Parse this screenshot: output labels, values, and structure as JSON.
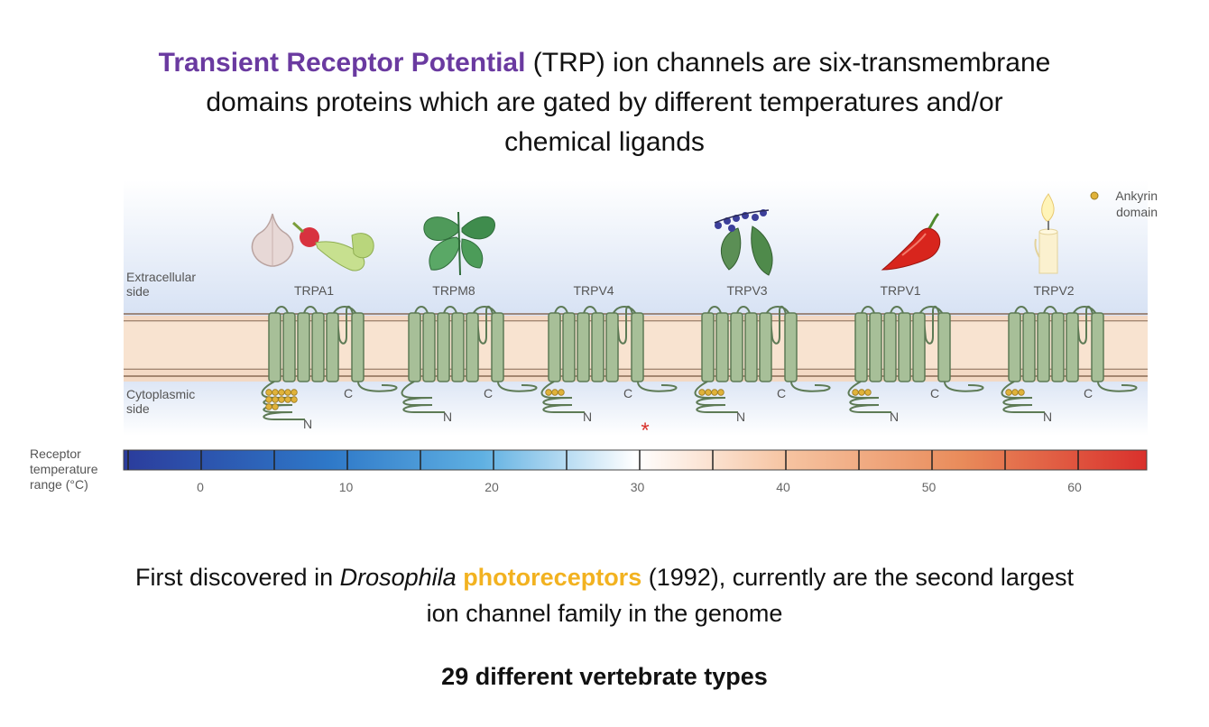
{
  "title": {
    "highlight": "Transient Receptor Potential",
    "rest_line1": " (TRP) ion channels are six-transmembrane",
    "line2": "domains proteins which are gated by different temperatures and/or",
    "line3": "chemical ligands"
  },
  "diagram": {
    "extracellular_label_1": "Extracellular",
    "extracellular_label_2": "side",
    "cytoplasmic_label_1": "Cytoplasmic",
    "cytoplasmic_label_2": "side",
    "ankyrin_label_1": "Ankyrin",
    "ankyrin_label_2": "domain",
    "terminal_c": "C",
    "terminal_n": "N",
    "channels": [
      {
        "name": "TRPA1",
        "icon": "garlic-radish-icon",
        "ankyrin_repeats": 12
      },
      {
        "name": "TRPM8",
        "icon": "mint-leaf-icon",
        "ankyrin_repeats": 0
      },
      {
        "name": "TRPV4",
        "icon": "",
        "ankyrin_repeats": 3
      },
      {
        "name": "TRPV3",
        "icon": "berries-leaves-icon",
        "ankyrin_repeats": 4
      },
      {
        "name": "TRPV1",
        "icon": "chili-pepper-icon",
        "ankyrin_repeats": 3
      },
      {
        "name": "TRPV2",
        "icon": "candle-icon",
        "ankyrin_repeats": 3
      }
    ],
    "scale": {
      "label_1": "Receptor",
      "label_2": "temperature",
      "label_3": "range (°C)",
      "ticks": [
        "0",
        "10",
        "20",
        "30",
        "40",
        "50",
        "60"
      ],
      "marker": "*",
      "cold_color": "#2b3c9c",
      "neutral_color": "#ffffff",
      "hot_color": "#d9302c"
    },
    "colors": {
      "helix": "#a7bf98",
      "helix_stroke": "#5d7a55",
      "membrane": "#f3d9c4",
      "ankyrin": "#e0b23a"
    }
  },
  "bottom": {
    "text_pre": "First discovered in ",
    "italic": "Drosophila",
    "highlight": "photoreceptors",
    "text_post_line1": " (1992), currently are the second largest",
    "line2": "ion channel family in the genome",
    "types": "29 different vertebrate types"
  }
}
